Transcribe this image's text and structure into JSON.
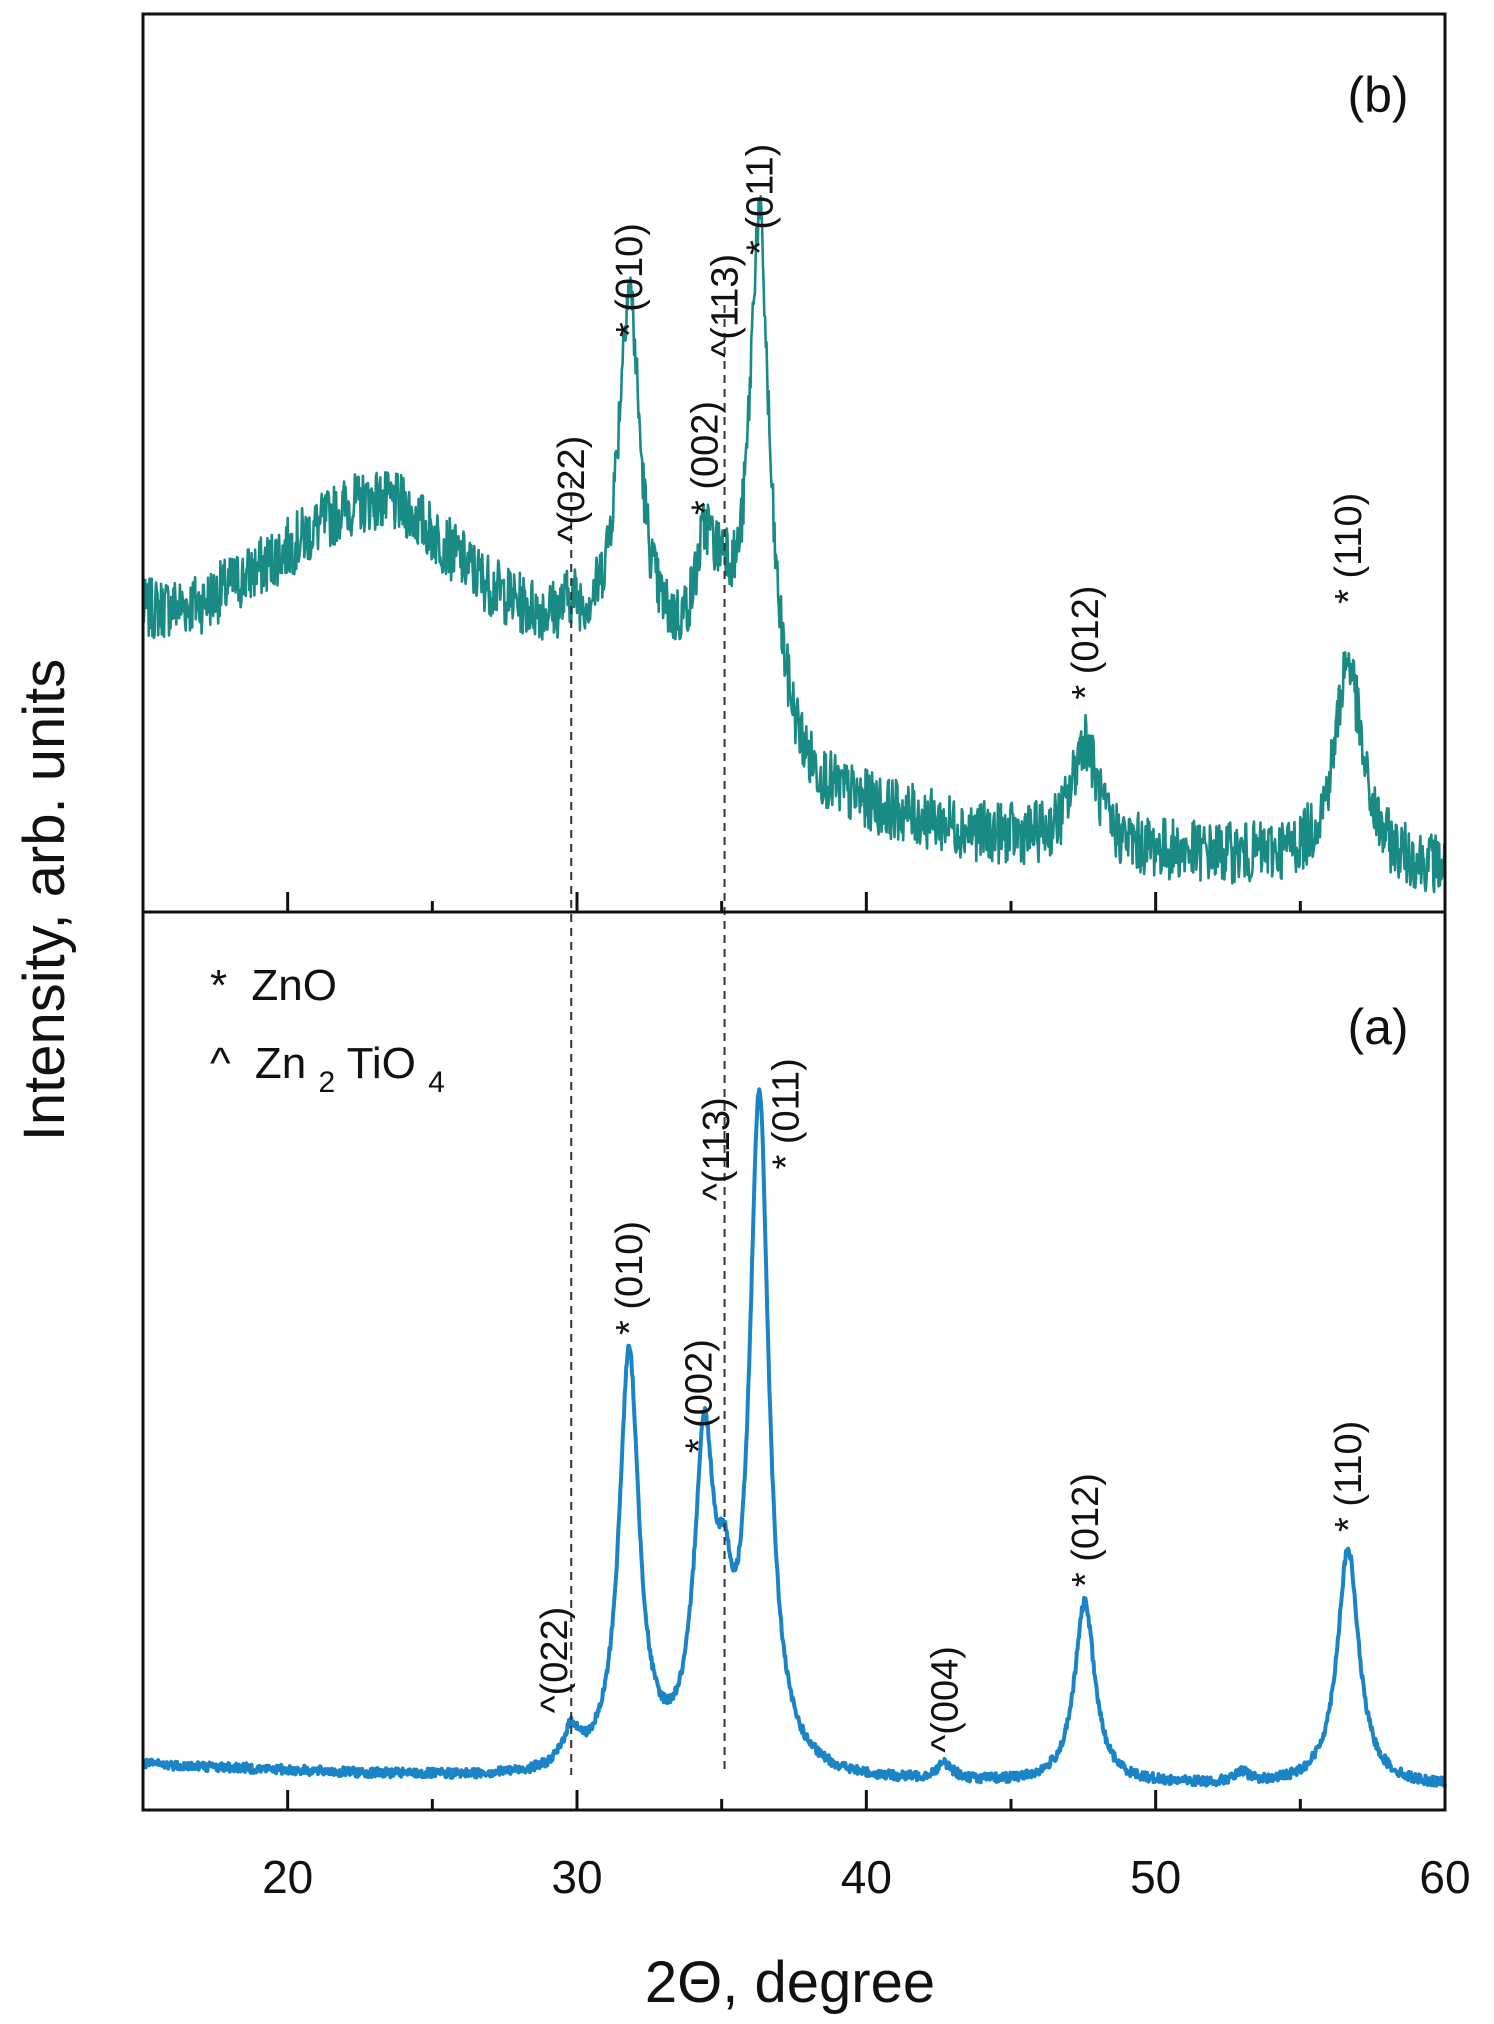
{
  "chart_data": {
    "type": "line",
    "title": "",
    "xlabel": "2Θ, degree",
    "ylabel": "Intensity, arb. units",
    "xlim": [
      15,
      60
    ],
    "x_ticks": [
      "20",
      "30",
      "40",
      "50",
      "60"
    ],
    "x_tick_values": [
      20,
      30,
      40,
      50,
      60
    ],
    "legend": [
      {
        "symbol": "*",
        "text": "ZnO"
      },
      {
        "symbol": "^",
        "text": "Zn",
        "sub": "2",
        "text2": "TiO",
        "sub2": "4"
      }
    ],
    "reference_lines": [
      29.8,
      35.1
    ],
    "panels": [
      {
        "name": "b",
        "label": "(b)",
        "color": "#1a8a85",
        "ylim": [
          0,
          100
        ],
        "background": [
          [
            15,
            42
          ],
          [
            17,
            43
          ],
          [
            19,
            48
          ],
          [
            21,
            54
          ],
          [
            22,
            57
          ],
          [
            23,
            58
          ],
          [
            24,
            57
          ],
          [
            25,
            53
          ],
          [
            26,
            49
          ],
          [
            27,
            45
          ],
          [
            28,
            42
          ],
          [
            29,
            40
          ],
          [
            30,
            38
          ],
          [
            31,
            37
          ],
          [
            32,
            36
          ],
          [
            33,
            34
          ],
          [
            34,
            32
          ],
          [
            35,
            30
          ],
          [
            36,
            27
          ],
          [
            37,
            22
          ],
          [
            38,
            16
          ],
          [
            39,
            14
          ],
          [
            40,
            13
          ],
          [
            42,
            11
          ],
          [
            44,
            9
          ],
          [
            46,
            8
          ],
          [
            48,
            7
          ],
          [
            50,
            6.5
          ],
          [
            52,
            6
          ],
          [
            54,
            5.5
          ],
          [
            56,
            5
          ],
          [
            58,
            4.5
          ],
          [
            60,
            4
          ]
        ],
        "peaks": [
          {
            "x": 29.8,
            "height": 3,
            "width": 0.35
          },
          {
            "x": 31.8,
            "height": 52,
            "width": 0.45
          },
          {
            "x": 34.45,
            "height": 17,
            "width": 0.45
          },
          {
            "x": 35.1,
            "height": 8,
            "width": 0.3
          },
          {
            "x": 36.3,
            "height": 72,
            "width": 0.42
          },
          {
            "x": 47.55,
            "height": 16,
            "width": 0.5
          },
          {
            "x": 56.65,
            "height": 30,
            "width": 0.55
          }
        ],
        "noise": 4.5,
        "annotations": [
          {
            "text": "^(022)",
            "x": 29.8,
            "y": 52
          },
          {
            "text": "* (010)",
            "x": 31.8,
            "y": 82
          },
          {
            "text": "* (002)",
            "x": 34.4,
            "y": 56
          },
          {
            "text": "^(113)",
            "x": 35.1,
            "y": 79
          },
          {
            "text": "* (011)",
            "x": 36.3,
            "y": 94
          },
          {
            "text": "* (012)",
            "x": 47.55,
            "y": 29
          },
          {
            "text": "* (110)",
            "x": 56.65,
            "y": 43
          }
        ]
      },
      {
        "name": "a",
        "label": "(a)",
        "color": "#1a84c7",
        "ylim": [
          0,
          100
        ],
        "background": [
          [
            15,
            3.5
          ],
          [
            18,
            3
          ],
          [
            22,
            2.3
          ],
          [
            26,
            1.8
          ],
          [
            30,
            1.5
          ],
          [
            35,
            1.2
          ],
          [
            40,
            1
          ],
          [
            45,
            0.9
          ],
          [
            50,
            0.8
          ],
          [
            55,
            0.7
          ],
          [
            60,
            0.6
          ]
        ],
        "peaks": [
          {
            "x": 29.8,
            "height": 4.5,
            "width": 0.35
          },
          {
            "x": 31.8,
            "height": 53,
            "width": 0.42
          },
          {
            "x": 34.4,
            "height": 40,
            "width": 0.42
          },
          {
            "x": 35.1,
            "height": 13,
            "width": 0.3
          },
          {
            "x": 36.3,
            "height": 85,
            "width": 0.4
          },
          {
            "x": 42.7,
            "height": 2,
            "width": 0.35
          },
          {
            "x": 47.55,
            "height": 23,
            "width": 0.42
          },
          {
            "x": 53.0,
            "height": 1.2,
            "width": 0.3
          },
          {
            "x": 56.65,
            "height": 30,
            "width": 0.45
          }
        ],
        "noise": 0.6,
        "annotations": [
          {
            "text": "^(022)",
            "x": 29.2,
            "y": 10
          },
          {
            "text": "* (010)",
            "x": 31.8,
            "y": 58
          },
          {
            "text": "* (002)",
            "x": 34.2,
            "y": 43
          },
          {
            "text": "^(113)",
            "x": 34.8,
            "y": 75
          },
          {
            "text": "* (011)",
            "x": 37.2,
            "y": 79
          },
          {
            "text": "^(004)",
            "x": 42.7,
            "y": 5
          },
          {
            "text": "* (012)",
            "x": 47.55,
            "y": 26
          },
          {
            "text": "* (110)",
            "x": 56.65,
            "y": 33
          }
        ]
      }
    ]
  }
}
